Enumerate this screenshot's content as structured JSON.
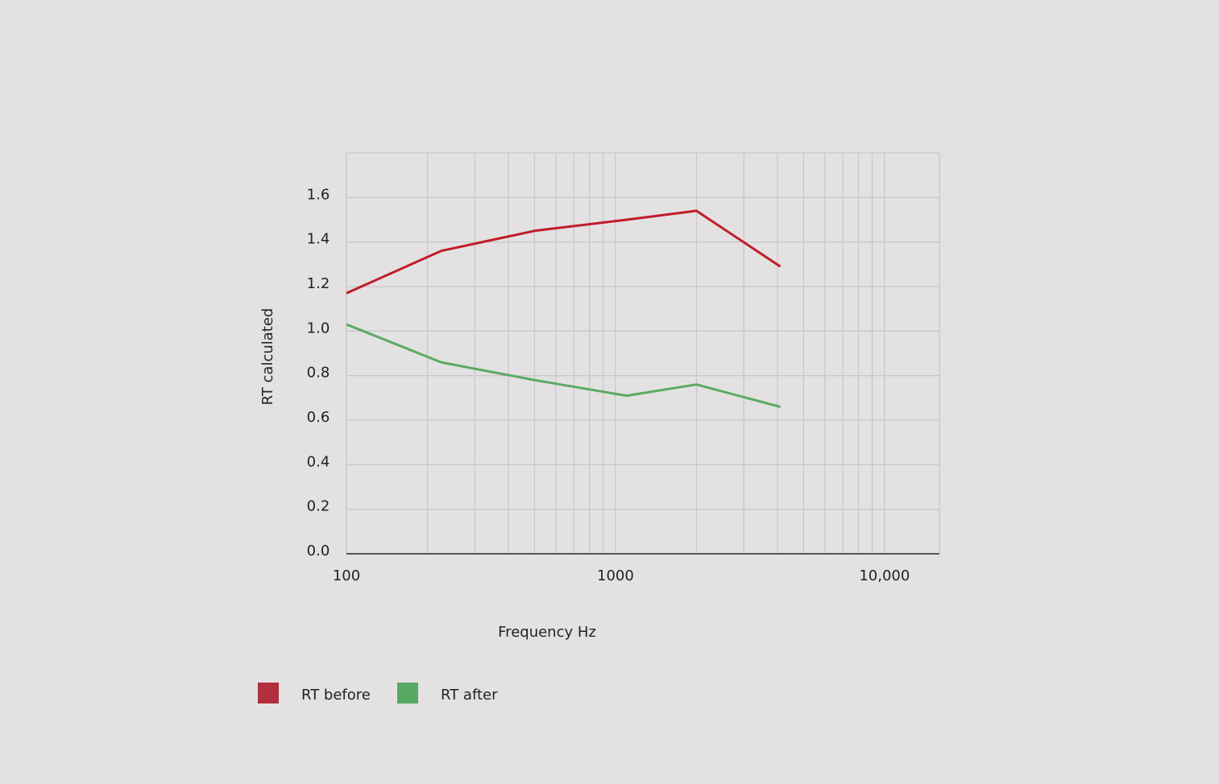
{
  "chart_data": {
    "type": "line",
    "title": "",
    "xlabel": "Frequency Hz",
    "ylabel": "RT calculated",
    "x_scale": "log",
    "xlim": [
      100,
      16000
    ],
    "ylim": [
      0,
      1.8
    ],
    "x_ticks": [
      100,
      1000,
      10000
    ],
    "x_tick_labels": [
      "100",
      "1000",
      "10,000"
    ],
    "y_ticks": [
      0,
      0.2,
      0.4,
      0.6,
      0.8,
      1.0,
      1.2,
      1.4,
      1.6
    ],
    "y_tick_labels": [
      "0.0",
      "0.2",
      "0.4",
      "0.6",
      "0.8",
      "1.0",
      "1.2",
      "1.4",
      "1.6"
    ],
    "grid": true,
    "legend_position": "bottom-left",
    "x": [
      100,
      225,
      500,
      1100,
      2000,
      4100
    ],
    "series": [
      {
        "name": "RT before",
        "color": "#c01c28",
        "legend_color": "#b22f3e",
        "values": [
          1.17,
          1.36,
          1.45,
          1.5,
          1.54,
          1.29
        ]
      },
      {
        "name": "RT after",
        "color": "#5aaa62",
        "legend_color": "#57a862",
        "values": [
          1.03,
          0.86,
          0.78,
          0.71,
          0.76,
          0.66
        ]
      }
    ]
  }
}
